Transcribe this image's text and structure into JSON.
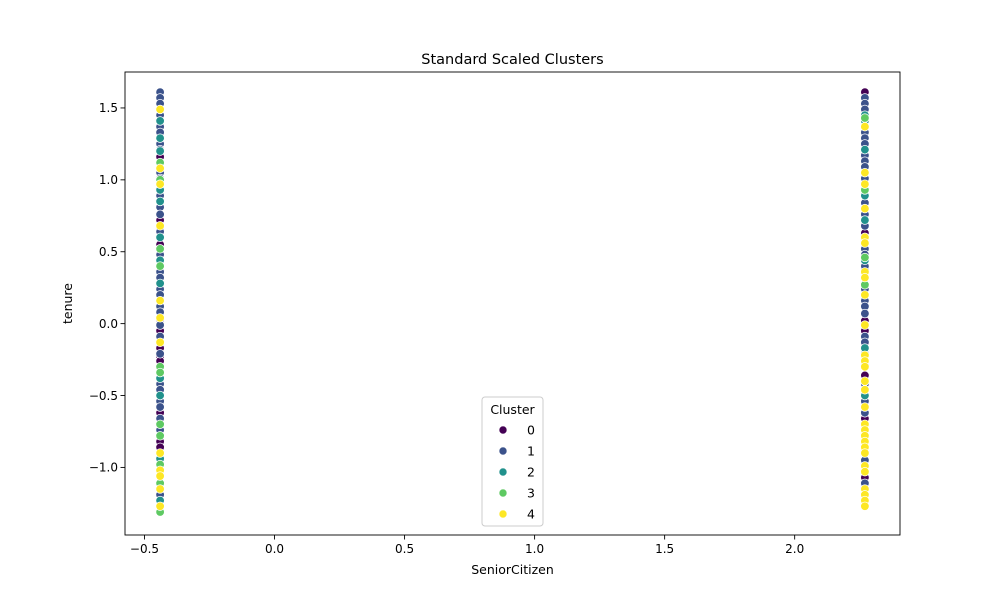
{
  "chart_data": {
    "type": "scatter",
    "title": "Standard Scaled Clusters",
    "xlabel": "SeniorCitizen",
    "ylabel": "tenure",
    "xlim": [
      -0.575,
      2.405
    ],
    "ylim": [
      -1.47,
      1.75
    ],
    "xticks": [
      -0.5,
      0.0,
      0.5,
      1.0,
      1.5,
      2.0
    ],
    "xtick_labels": [
      "−0.5",
      "0.0",
      "0.5",
      "1.0",
      "1.5",
      "2.0"
    ],
    "yticks": [
      -1.0,
      -0.5,
      0.0,
      0.5,
      1.0,
      1.5
    ],
    "ytick_labels": [
      "−1.0",
      "−0.5",
      "0.0",
      "0.5",
      "1.0",
      "1.5"
    ],
    "grid": false,
    "legend": {
      "title": "Cluster",
      "placement": "lower-center",
      "entries": [
        {
          "label": "0",
          "color": "#440154"
        },
        {
          "label": "1",
          "color": "#3b528b"
        },
        {
          "label": "2",
          "color": "#21918c"
        },
        {
          "label": "3",
          "color": "#5ec962"
        },
        {
          "label": "4",
          "color": "#fde725"
        }
      ]
    },
    "series": [
      {
        "name": "0",
        "color": "#440154",
        "points": [
          [
            -0.44,
            1.16
          ],
          [
            -0.44,
            0.72
          ],
          [
            -0.44,
            0.67
          ],
          [
            -0.44,
            0.55
          ],
          [
            -0.44,
            0.03
          ],
          [
            -0.44,
            -0.05
          ],
          [
            -0.44,
            -0.17
          ],
          [
            -0.44,
            -0.23
          ],
          [
            -0.44,
            -0.26
          ],
          [
            -0.44,
            -0.62
          ],
          [
            -0.44,
            -0.82
          ],
          [
            -0.44,
            -0.86
          ],
          [
            2.27,
            1.61
          ],
          [
            2.27,
            0.63
          ],
          [
            2.27,
            0.38
          ],
          [
            2.27,
            0.02
          ],
          [
            2.27,
            -0.05
          ],
          [
            2.27,
            -0.36
          ],
          [
            2.27,
            -0.66
          ],
          [
            2.27,
            -1.07
          ]
        ]
      },
      {
        "name": "1",
        "color": "#3b528b",
        "points": [
          [
            -0.44,
            1.61
          ],
          [
            -0.44,
            1.57
          ],
          [
            -0.44,
            1.53
          ],
          [
            -0.44,
            1.45
          ],
          [
            -0.44,
            1.37
          ],
          [
            -0.44,
            1.33
          ],
          [
            -0.44,
            1.25
          ],
          [
            -0.44,
            1.21
          ],
          [
            -0.44,
            1.05
          ],
          [
            -0.44,
            1.01
          ],
          [
            -0.44,
            0.89
          ],
          [
            -0.44,
            0.81
          ],
          [
            -0.44,
            0.76
          ],
          [
            -0.44,
            0.64
          ],
          [
            -0.44,
            0.48
          ],
          [
            -0.44,
            0.36
          ],
          [
            -0.44,
            0.32
          ],
          [
            -0.44,
            0.24
          ],
          [
            -0.44,
            0.2
          ],
          [
            -0.44,
            0.12
          ],
          [
            -0.44,
            0.08
          ],
          [
            -0.44,
            -0.01
          ],
          [
            -0.44,
            -0.09
          ],
          [
            -0.44,
            -0.21
          ],
          [
            -0.44,
            -0.42
          ],
          [
            -0.44,
            -0.46
          ],
          [
            -0.44,
            -0.54
          ],
          [
            -0.44,
            -0.58
          ],
          [
            -0.44,
            -0.66
          ],
          [
            -0.44,
            -0.74
          ],
          [
            -0.44,
            -1.19
          ],
          [
            2.27,
            1.57
          ],
          [
            2.27,
            1.53
          ],
          [
            2.27,
            1.49
          ],
          [
            2.27,
            1.33
          ],
          [
            2.27,
            1.29
          ],
          [
            2.27,
            1.25
          ],
          [
            2.27,
            1.17
          ],
          [
            2.27,
            1.13
          ],
          [
            2.27,
            1.09
          ],
          [
            2.27,
            1.01
          ],
          [
            2.27,
            0.93
          ],
          [
            2.27,
            0.84
          ],
          [
            2.27,
            0.76
          ],
          [
            2.27,
            0.68
          ],
          [
            2.27,
            0.52
          ],
          [
            2.27,
            0.48
          ],
          [
            2.27,
            0.4
          ],
          [
            2.27,
            0.24
          ],
          [
            2.27,
            0.16
          ],
          [
            2.27,
            0.12
          ],
          [
            2.27,
            0.07
          ],
          [
            2.27,
            -0.09
          ],
          [
            2.27,
            -0.13
          ],
          [
            2.27,
            -0.21
          ],
          [
            2.27,
            -0.29
          ],
          [
            2.27,
            -0.42
          ],
          [
            2.27,
            -0.54
          ],
          [
            2.27,
            -0.62
          ],
          [
            2.27,
            -0.95
          ],
          [
            2.27,
            -1.11
          ]
        ]
      },
      {
        "name": "2",
        "color": "#21918c",
        "points": [
          [
            -0.44,
            1.41
          ],
          [
            -0.44,
            1.29
          ],
          [
            -0.44,
            1.2
          ],
          [
            -0.44,
            0.93
          ],
          [
            -0.44,
            0.85
          ],
          [
            -0.44,
            0.6
          ],
          [
            -0.44,
            0.44
          ],
          [
            -0.44,
            0.28
          ],
          [
            -0.44,
            -0.38
          ],
          [
            -0.44,
            -0.5
          ],
          [
            -0.44,
            -0.94
          ],
          [
            -0.44,
            -1.23
          ],
          [
            2.27,
            1.45
          ],
          [
            2.27,
            1.41
          ],
          [
            2.27,
            1.21
          ],
          [
            2.27,
            0.89
          ],
          [
            2.27,
            0.72
          ],
          [
            2.27,
            0.44
          ],
          [
            2.27,
            -0.17
          ],
          [
            2.27,
            -0.5
          ]
        ]
      },
      {
        "name": "3",
        "color": "#5ec962",
        "points": [
          [
            -0.44,
            1.12
          ],
          [
            -0.44,
            1.0
          ],
          [
            -0.44,
            0.52
          ],
          [
            -0.44,
            0.4
          ],
          [
            -0.44,
            -0.3
          ],
          [
            -0.44,
            -0.34
          ],
          [
            -0.44,
            -0.7
          ],
          [
            -0.44,
            -0.78
          ],
          [
            -0.44,
            -0.98
          ],
          [
            -0.44,
            -1.11
          ],
          [
            -0.44,
            -1.31
          ],
          [
            2.27,
            1.43
          ],
          [
            2.27,
            0.93
          ],
          [
            2.27,
            0.46
          ],
          [
            2.27,
            0.27
          ]
        ]
      },
      {
        "name": "4",
        "color": "#fde725",
        "points": [
          [
            -0.44,
            1.49
          ],
          [
            -0.44,
            1.08
          ],
          [
            -0.44,
            0.97
          ],
          [
            -0.44,
            0.68
          ],
          [
            -0.44,
            0.16
          ],
          [
            -0.44,
            0.04
          ],
          [
            -0.44,
            -0.13
          ],
          [
            -0.44,
            -0.9
          ],
          [
            -0.44,
            -1.02
          ],
          [
            -0.44,
            -1.06
          ],
          [
            -0.44,
            -1.15
          ],
          [
            -0.44,
            -1.27
          ],
          [
            2.27,
            1.37
          ],
          [
            2.27,
            1.05
          ],
          [
            2.27,
            0.97
          ],
          [
            2.27,
            0.8
          ],
          [
            2.27,
            0.6
          ],
          [
            2.27,
            0.56
          ],
          [
            2.27,
            0.36
          ],
          [
            2.27,
            0.32
          ],
          [
            2.27,
            0.2
          ],
          [
            2.27,
            -0.01
          ],
          [
            2.27,
            -0.22
          ],
          [
            2.27,
            -0.26
          ],
          [
            2.27,
            -0.3
          ],
          [
            2.27,
            -0.4
          ],
          [
            2.27,
            -0.46
          ],
          [
            2.27,
            -0.58
          ],
          [
            2.27,
            -0.7
          ],
          [
            2.27,
            -0.74
          ],
          [
            2.27,
            -0.78
          ],
          [
            2.27,
            -0.82
          ],
          [
            2.27,
            -0.86
          ],
          [
            2.27,
            -0.9
          ],
          [
            2.27,
            -0.99
          ],
          [
            2.27,
            -1.03
          ],
          [
            2.27,
            -1.15
          ],
          [
            2.27,
            -1.19
          ],
          [
            2.27,
            -1.23
          ],
          [
            2.27,
            -1.27
          ]
        ]
      }
    ]
  }
}
